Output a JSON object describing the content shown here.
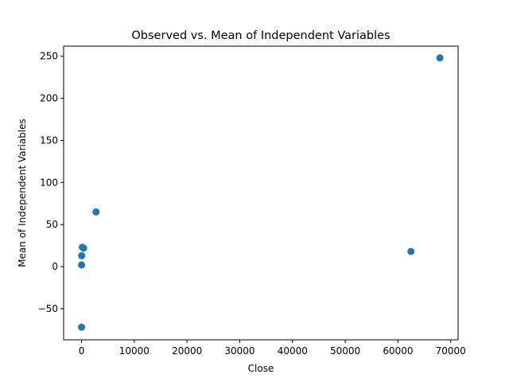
{
  "chart_data": {
    "type": "scatter",
    "title": "Observed vs. Mean of Independent Variables",
    "xlabel": "Close",
    "ylabel": "Mean of Independent Variables",
    "xlim": [
      -3400,
      71400
    ],
    "ylim": [
      -87,
      262
    ],
    "xticks": [
      0,
      10000,
      20000,
      30000,
      40000,
      50000,
      60000,
      70000
    ],
    "yticks": [
      -50,
      0,
      50,
      100,
      150,
      200,
      250
    ],
    "grid": false,
    "marker_color": "#1f77b4",
    "points": [
      {
        "x": 67950,
        "y": 248
      },
      {
        "x": 62450,
        "y": 18
      },
      {
        "x": 2750,
        "y": 65
      },
      {
        "x": 400,
        "y": 22
      },
      {
        "x": 150,
        "y": 23
      },
      {
        "x": 30,
        "y": 13
      },
      {
        "x": 10,
        "y": 2
      },
      {
        "x": 5,
        "y": -72
      }
    ]
  }
}
